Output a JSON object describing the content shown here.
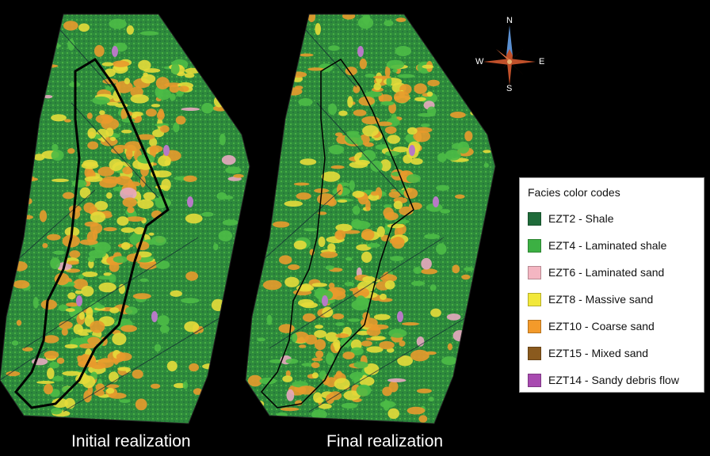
{
  "panels": {
    "left": {
      "caption": "Initial realization"
    },
    "right": {
      "caption": "Final realization"
    }
  },
  "compass": {
    "n": "N",
    "s": "S",
    "e": "E",
    "w": "W"
  },
  "legend": {
    "title": "Facies color codes",
    "items": [
      {
        "label": "EZT2 - Shale",
        "color": "#1f6b3a"
      },
      {
        "label": "EZT4 - Laminated shale",
        "color": "#3cb043"
      },
      {
        "label": "EZT6 - Laminated sand",
        "color": "#f4b6c2"
      },
      {
        "label": "EZT8 - Massive sand",
        "color": "#f2e83a"
      },
      {
        "label": "EZT10 - Coarse sand",
        "color": "#f39a2a"
      },
      {
        "label": "EZT15 - Mixed sand",
        "color": "#8a5a1e"
      },
      {
        "label": "EZT14 - Sandy debris flow",
        "color": "#a84ab0"
      }
    ]
  },
  "colors": {
    "field": "#2e8a3c",
    "laminated_shale": "#4dbb46",
    "massive_sand": "#e6dc3a",
    "coarse_sand": "#e89a2c",
    "laminated_sand": "#e7a8c0",
    "debris": "#b77ac6"
  }
}
